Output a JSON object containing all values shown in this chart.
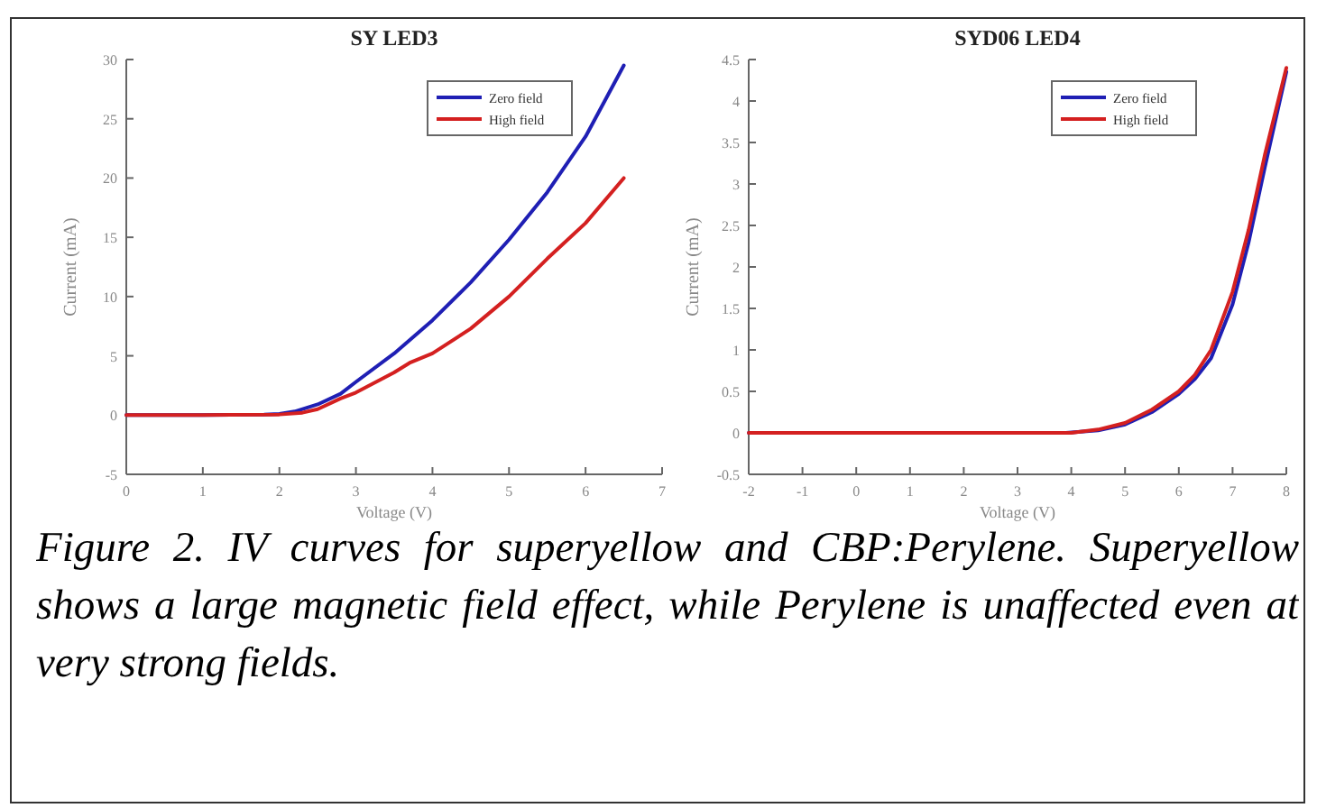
{
  "chart_data": [
    {
      "type": "line",
      "title": "SY LED3",
      "xlabel": "Voltage (V)",
      "ylabel": "Current (mA)",
      "xlim": [
        0,
        7
      ],
      "xticks": [
        0,
        1,
        2,
        3,
        4,
        5,
        6,
        7
      ],
      "ylim": [
        -5,
        30
      ],
      "yticks": [
        -5,
        0,
        5,
        10,
        15,
        20,
        25,
        30
      ],
      "grid": false,
      "legend": "top right",
      "marker": "none",
      "line_style": "solid",
      "annotations": [
        "Figure 2. IV curves for superyellow and CBP:Perylene. Superyellow shows a large magnetic field effect, while Perylene is unaffected even at very strong fields."
      ],
      "series": [
        {
          "name": "Zero field",
          "color": "#1f1fb4",
          "x": [
            0,
            1,
            1.8,
            2,
            2.2,
            2.5,
            2.8,
            3,
            3.5,
            4,
            4.5,
            5,
            5.5,
            6,
            6.5
          ],
          "values": [
            0,
            0,
            0.05,
            0.1,
            0.3,
            0.9,
            1.8,
            2.8,
            5.2,
            8,
            11.2,
            14.8,
            18.8,
            23.5,
            29.5
          ]
        },
        {
          "name": "High field",
          "color": "#d42020",
          "x": [
            0,
            1,
            2,
            2.3,
            2.5,
            2.8,
            3,
            3.5,
            3.7,
            4,
            4.5,
            5,
            5.5,
            6,
            6.5
          ],
          "values": [
            0,
            0,
            0.05,
            0.2,
            0.5,
            1.4,
            1.9,
            3.6,
            4.4,
            5.2,
            7.3,
            10,
            13.2,
            16.2,
            20
          ]
        }
      ]
    },
    {
      "type": "line",
      "title": "SYD06 LED4",
      "xlabel": "Voltage (V)",
      "ylabel": "Current (mA)",
      "xlim": [
        -2,
        8
      ],
      "xticks": [
        -2,
        -1,
        0,
        1,
        2,
        3,
        4,
        5,
        6,
        7,
        8
      ],
      "ylim": [
        -0.5,
        4.5
      ],
      "yticks": [
        -0.5,
        0,
        0.5,
        1,
        1.5,
        2,
        2.5,
        3,
        3.5,
        4,
        4.5
      ],
      "grid": false,
      "legend": "top right",
      "marker": "none",
      "line_style": "solid",
      "series": [
        {
          "name": "Zero field",
          "color": "#1f1fb4",
          "x": [
            -2,
            3.9,
            4.5,
            5,
            5.5,
            6,
            6.3,
            6.6,
            7,
            7.3,
            7.6,
            8
          ],
          "values": [
            0,
            0,
            0.03,
            0.1,
            0.25,
            0.47,
            0.65,
            0.9,
            1.55,
            2.3,
            3.2,
            4.35
          ]
        },
        {
          "name": "High field",
          "color": "#d42020",
          "x": [
            -2,
            4,
            4.5,
            5,
            5.5,
            6,
            6.3,
            6.6,
            7,
            7.3,
            7.6,
            8
          ],
          "values": [
            0,
            0,
            0.04,
            0.12,
            0.28,
            0.5,
            0.7,
            1.0,
            1.7,
            2.45,
            3.35,
            4.4
          ]
        }
      ]
    }
  ]
}
